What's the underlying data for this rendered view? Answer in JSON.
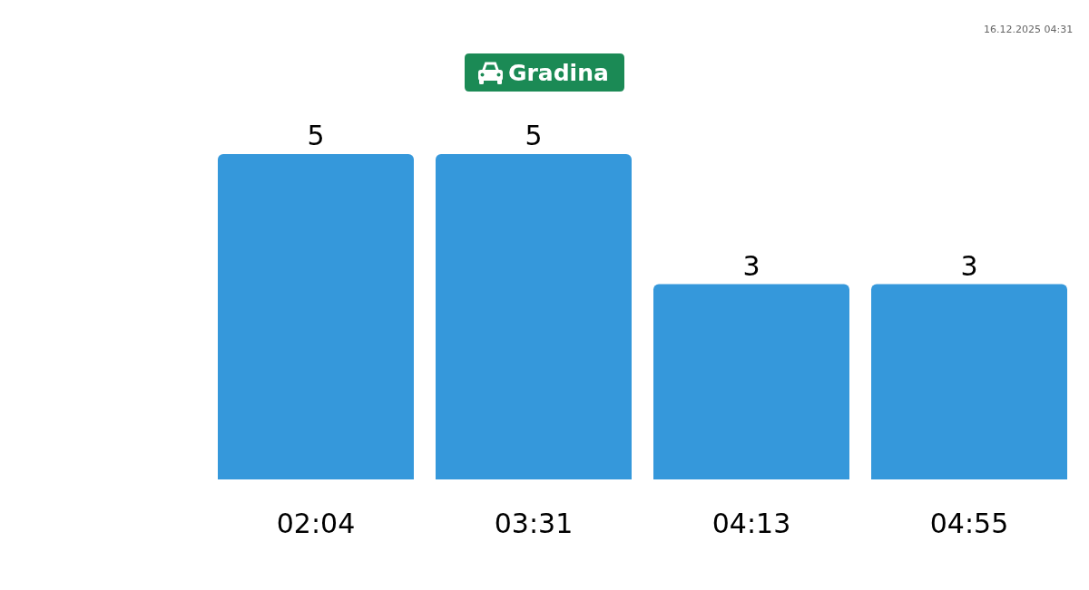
{
  "chart_data": {
    "type": "bar",
    "title": "Gradina",
    "categories": [
      "02:04",
      "03:31",
      "04:13",
      "04:55"
    ],
    "values": [
      5,
      5,
      3,
      3
    ],
    "color": "#3598db",
    "data_labels": true,
    "tick_labels": "x",
    "annotations": [
      "16.12.2025 04:31"
    ]
  }
}
